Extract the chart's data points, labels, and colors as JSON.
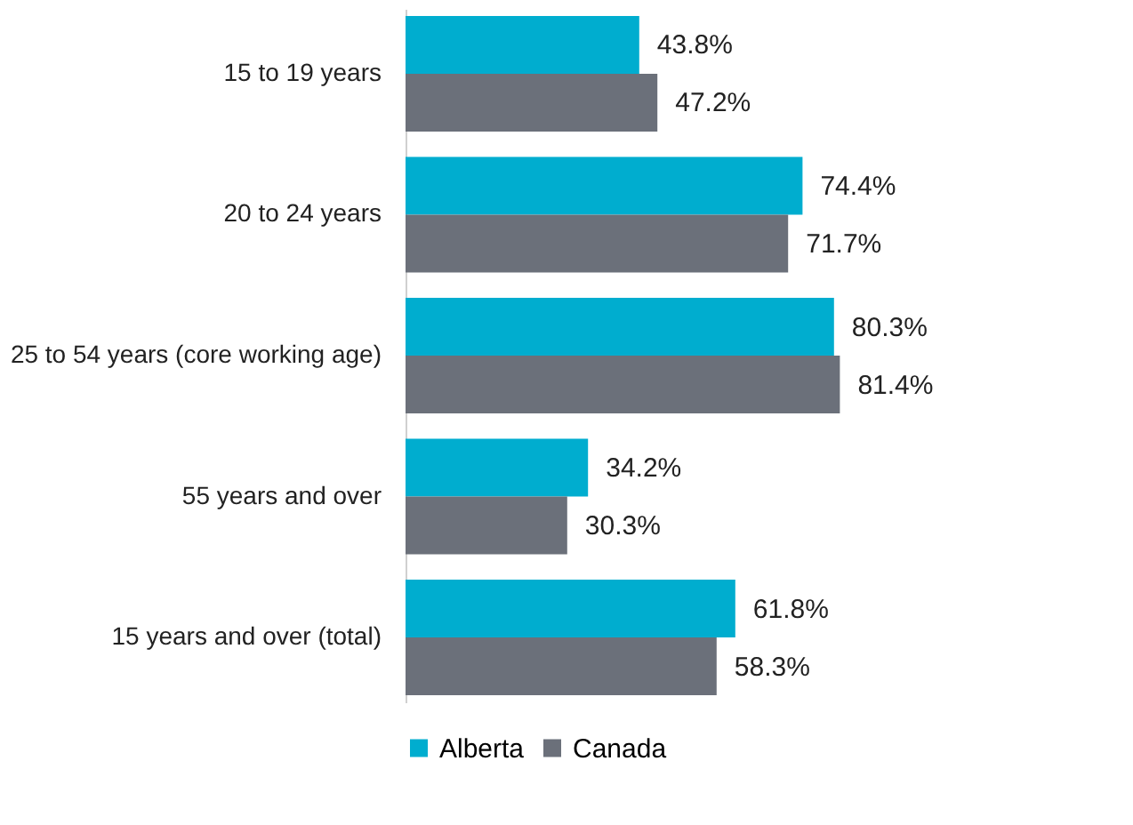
{
  "chart_data": {
    "type": "bar",
    "orientation": "horizontal",
    "categories": [
      "15 to 19 years",
      "20 to 24 years",
      "25 to 54 years (core working age)",
      "55 years and over",
      "15 years and over (total)"
    ],
    "series": [
      {
        "name": "Alberta",
        "color": "#00adcf",
        "values": [
          43.8,
          74.4,
          80.3,
          34.2,
          61.8
        ],
        "value_labels": [
          "43.8%",
          "74.4%",
          "80.3%",
          "34.2%",
          "61.8%"
        ]
      },
      {
        "name": "Canada",
        "color": "#6b707a",
        "values": [
          47.2,
          71.7,
          81.4,
          30.3,
          58.3
        ],
        "value_labels": [
          "47.2%",
          "71.7%",
          "81.4%",
          "30.3%",
          "58.3%"
        ]
      }
    ],
    "legend": "bottom"
  }
}
